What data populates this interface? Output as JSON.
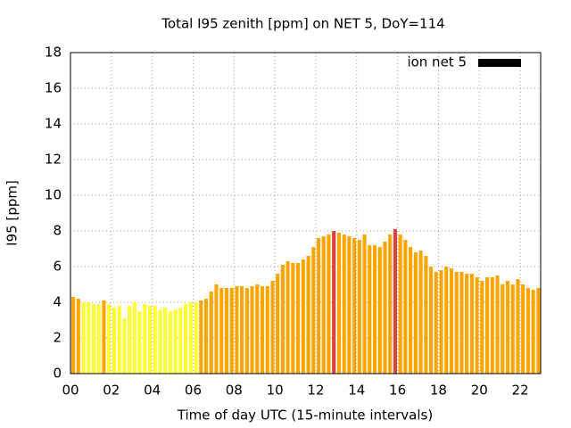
{
  "chart_data": {
    "type": "bar",
    "title": "Total I95 zenith [ppm] on NET 5, DoY=114",
    "xlabel": "Time of day UTC (15-minute intervals)",
    "ylabel": "I95 [ppm]",
    "x": [
      0,
      0.25,
      0.5,
      0.75,
      1,
      1.25,
      1.5,
      1.75,
      2,
      2.25,
      2.5,
      2.75,
      3,
      3.25,
      3.5,
      3.75,
      4,
      4.25,
      4.5,
      4.75,
      5,
      5.25,
      5.5,
      5.75,
      6,
      6.25,
      6.5,
      6.75,
      7,
      7.25,
      7.5,
      7.75,
      8,
      8.25,
      8.5,
      8.75,
      9,
      9.25,
      9.5,
      9.75,
      10,
      10.25,
      10.5,
      10.75,
      11,
      11.25,
      11.5,
      11.75,
      12,
      12.25,
      12.5,
      12.75,
      13,
      13.25,
      13.5,
      13.75,
      14,
      14.25,
      14.5,
      14.75,
      15,
      15.25,
      15.5,
      15.75,
      16,
      16.25,
      16.5,
      16.75,
      17,
      17.25,
      17.5,
      17.75,
      18,
      18.25,
      18.5,
      18.75,
      19,
      19.25,
      19.5,
      19.75,
      20,
      20.25,
      20.5,
      20.75,
      21,
      21.25,
      21.5,
      21.75,
      22,
      22.25,
      22.5,
      22.75
    ],
    "series": [
      {
        "name": "ion net 5",
        "color": "#000000",
        "values": [
          4.3,
          4.2,
          4.0,
          4.0,
          3.9,
          3.9,
          4.1,
          3.9,
          3.7,
          3.8,
          3.1,
          3.8,
          4.0,
          3.5,
          3.9,
          3.8,
          3.8,
          3.6,
          3.7,
          3.5,
          3.6,
          3.7,
          3.9,
          4.0,
          4.0,
          4.1,
          4.2,
          4.6,
          5.0,
          4.8,
          4.8,
          4.8,
          4.9,
          4.9,
          4.8,
          4.9,
          5.0,
          4.9,
          4.9,
          5.2,
          5.6,
          6.1,
          6.3,
          6.2,
          6.2,
          6.4,
          6.6,
          7.1,
          7.6,
          7.7,
          7.8,
          8.0,
          7.9,
          7.8,
          7.7,
          7.6,
          7.5,
          7.8,
          7.2,
          7.2,
          7.1,
          7.4,
          7.8,
          8.1,
          7.8,
          7.5,
          7.1,
          6.8,
          6.9,
          6.6,
          6.0,
          5.7,
          5.8,
          6.0,
          5.9,
          5.7,
          5.7,
          5.6,
          5.6,
          5.4,
          5.2,
          5.4,
          5.4,
          5.5,
          5.0,
          5.2,
          5.0,
          5.3,
          5.0,
          4.8,
          4.7,
          4.8
        ],
        "colors": [
          "#ffa500",
          "#ffa500",
          "#ffff33",
          "#ffff33",
          "#ffff33",
          "#ffff33",
          "#ffa500",
          "#ffff33",
          "#ffff33",
          "#ffff33",
          "#ffff33",
          "#ffff33",
          "#ffff33",
          "#ffff33",
          "#ffff33",
          "#ffff33",
          "#ffff33",
          "#ffff33",
          "#ffff33",
          "#ffff33",
          "#ffff33",
          "#ffff33",
          "#ffff33",
          "#ffff33",
          "#ffff33",
          "#ffa500",
          "#ffa500",
          "#ffa500",
          "#ffa500",
          "#ffa500",
          "#ffa500",
          "#ffa500",
          "#ffa500",
          "#ffa500",
          "#ffa500",
          "#ffa500",
          "#ffa500",
          "#ffa500",
          "#ffa500",
          "#ffa500",
          "#ffa500",
          "#ffa500",
          "#ffa500",
          "#ffa500",
          "#ffa500",
          "#ffa500",
          "#ffa500",
          "#ffa500",
          "#ffa500",
          "#ffa500",
          "#ffa500",
          "#e04040",
          "#ffa500",
          "#ffa500",
          "#ffa500",
          "#ffa500",
          "#ffa500",
          "#ffa500",
          "#ffa500",
          "#ffa500",
          "#ffa500",
          "#ffa500",
          "#ffa500",
          "#e04040",
          "#ffa500",
          "#ffa500",
          "#ffa500",
          "#ffa500",
          "#ffa500",
          "#ffa500",
          "#ffa500",
          "#ffa500",
          "#ffa500",
          "#ffa500",
          "#ffa500",
          "#ffa500",
          "#ffa500",
          "#ffa500",
          "#ffa500",
          "#ffa500",
          "#ffa500",
          "#ffa500",
          "#ffa500",
          "#ffa500",
          "#ffa500",
          "#ffa500",
          "#ffa500",
          "#ffa500",
          "#ffa500",
          "#ffa500",
          "#ffa500",
          "#ffa500"
        ]
      }
    ],
    "bar_width": 0.25,
    "xlim": [
      0,
      23
    ],
    "xticks": [
      {
        "value": 0,
        "label": "00"
      },
      {
        "value": 2,
        "label": "02"
      },
      {
        "value": 4,
        "label": "04"
      },
      {
        "value": 6,
        "label": "06"
      },
      {
        "value": 8,
        "label": "08"
      },
      {
        "value": 10,
        "label": "10"
      },
      {
        "value": 12,
        "label": "12"
      },
      {
        "value": 14,
        "label": "14"
      },
      {
        "value": 16,
        "label": "16"
      },
      {
        "value": 18,
        "label": "18"
      },
      {
        "value": 20,
        "label": "20"
      },
      {
        "value": 22,
        "label": "22"
      }
    ],
    "ylim": [
      0,
      18
    ],
    "yticks": [
      0,
      2,
      4,
      6,
      8,
      10,
      12,
      14,
      16,
      18
    ],
    "grid": true,
    "legend": "top-right"
  }
}
